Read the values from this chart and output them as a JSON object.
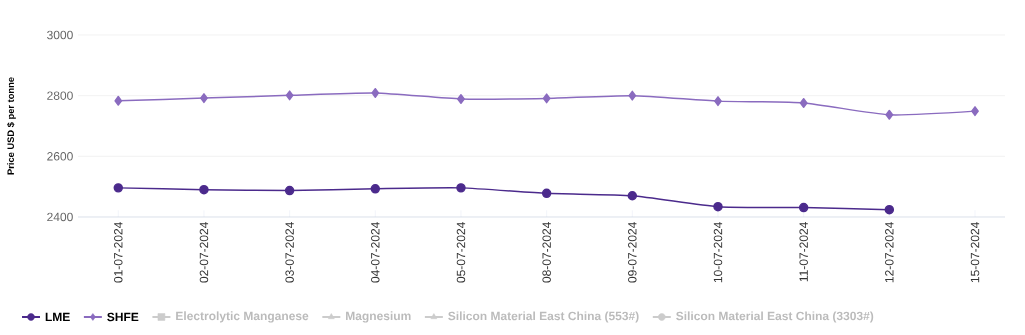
{
  "chart_data": {
    "type": "line",
    "ylabel": "Price USD $ per tonne",
    "categories": [
      "01-07-2024",
      "02-07-2024",
      "03-07-2024",
      "04-07-2024",
      "05-07-2024",
      "08-07-2024",
      "09-07-2024",
      "10-07-2024",
      "11-07-2024",
      "12-07-2024",
      "15-07-2024"
    ],
    "series": [
      {
        "name": "LME",
        "color": "#4b2a8c",
        "marker": "circle",
        "values": [
          2496,
          2490,
          2487,
          2493,
          2496,
          2478,
          2470,
          2434,
          2431,
          2424,
          null
        ]
      },
      {
        "name": "SHFE",
        "color": "#8a6bbf",
        "marker": "diamond",
        "values": [
          2783,
          2792,
          2801,
          2809,
          2789,
          2791,
          2800,
          2782,
          2776,
          2737,
          2749
        ]
      },
      {
        "name": "Electrolytic Manganese",
        "color": "#cccccc",
        "marker": "square",
        "values": [
          null,
          null,
          null,
          null,
          null,
          null,
          null,
          null,
          null,
          null,
          null
        ]
      },
      {
        "name": "Magnesium",
        "color": "#cccccc",
        "marker": "triangle",
        "values": [
          null,
          null,
          null,
          null,
          null,
          null,
          null,
          null,
          null,
          null,
          null
        ]
      },
      {
        "name": "Silicon Material East China (553#)",
        "color": "#cccccc",
        "marker": "triangle",
        "values": [
          null,
          null,
          null,
          null,
          null,
          null,
          null,
          null,
          null,
          null,
          null
        ]
      },
      {
        "name": "Silicon Material East China (3303#)",
        "color": "#cccccc",
        "marker": "circle",
        "values": [
          null,
          null,
          null,
          null,
          null,
          null,
          null,
          null,
          null,
          null,
          null
        ]
      }
    ],
    "ylim": [
      2400,
      3000
    ],
    "yticks": [
      2400,
      2600,
      2800,
      3000
    ],
    "grid": "y",
    "legend": "bottom",
    "line_style": "solid"
  }
}
